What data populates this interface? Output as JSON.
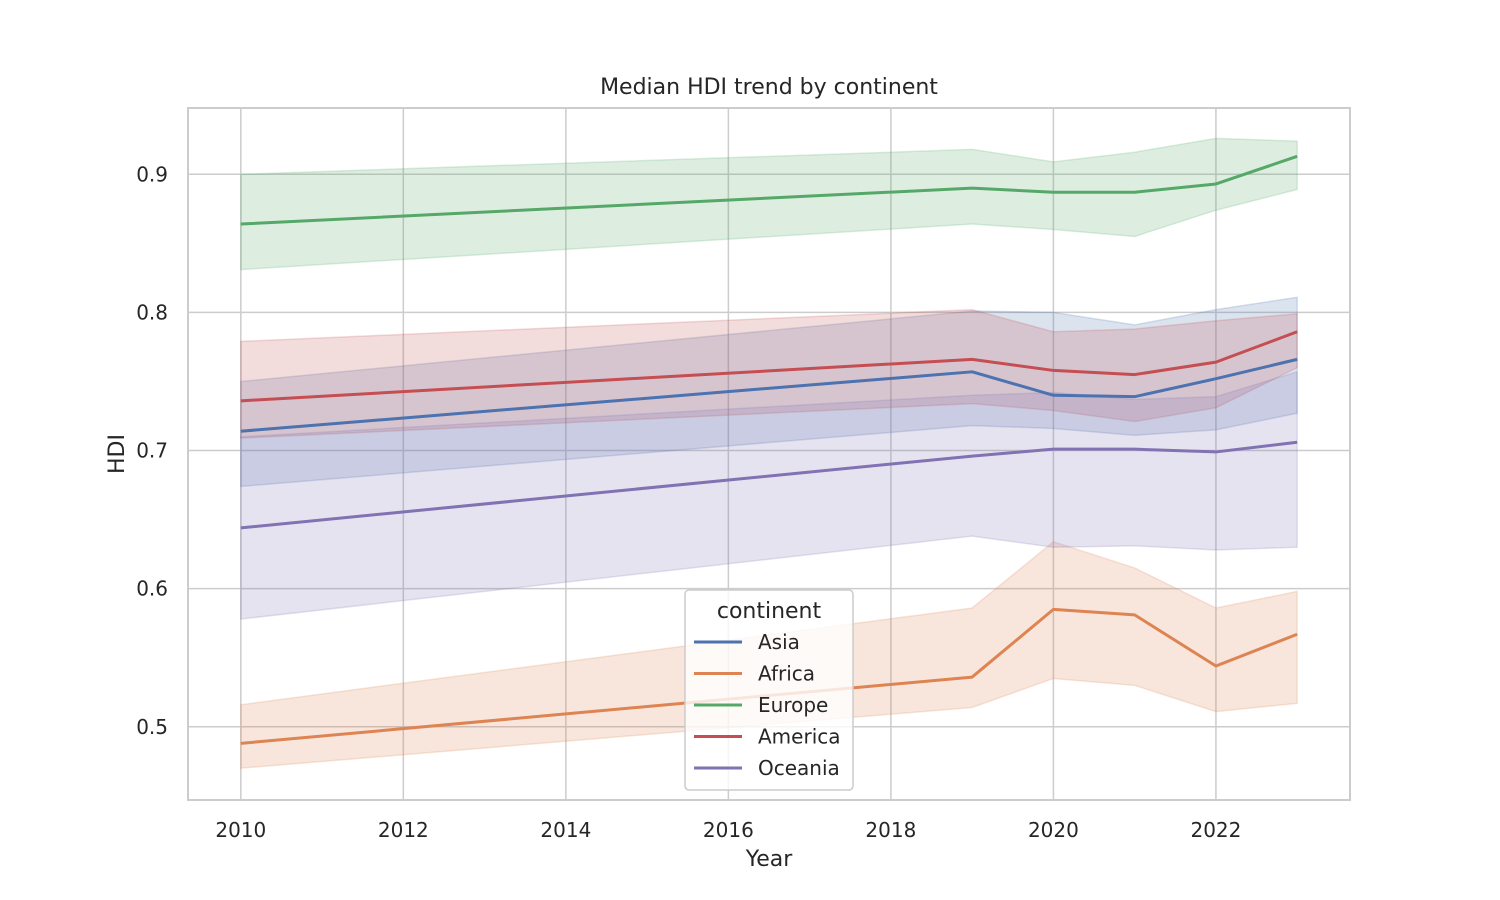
{
  "chart_data": {
    "type": "line",
    "title": "Median HDI trend by continent",
    "xlabel": "Year",
    "ylabel": "HDI",
    "xlim": [
      2009.35,
      2023.65
    ],
    "ylim": [
      0.447,
      0.948
    ],
    "xticks": [
      2010,
      2012,
      2014,
      2016,
      2018,
      2020,
      2022
    ],
    "yticks": [
      0.5,
      0.6,
      0.7,
      0.8,
      0.9
    ],
    "x": [
      2010,
      2019,
      2020,
      2021,
      2022,
      2023
    ],
    "grid": true,
    "legend": {
      "title": "continent",
      "placement": "lower center"
    },
    "series": [
      {
        "name": "Asia",
        "color": "#4c72b0",
        "values": [
          0.714,
          0.757,
          0.74,
          0.739,
          0.752,
          0.766
        ],
        "band_low": [
          0.674,
          0.718,
          0.716,
          0.711,
          0.715,
          0.727
        ],
        "band_high": [
          0.75,
          0.801,
          0.8,
          0.791,
          0.802,
          0.811
        ]
      },
      {
        "name": "Africa",
        "color": "#dd8452",
        "values": [
          0.488,
          0.536,
          0.585,
          0.581,
          0.544,
          0.567
        ],
        "band_low": [
          0.47,
          0.514,
          0.535,
          0.53,
          0.511,
          0.517
        ],
        "band_high": [
          0.516,
          0.586,
          0.634,
          0.615,
          0.586,
          0.598
        ]
      },
      {
        "name": "Europe",
        "color": "#55a868",
        "values": [
          0.864,
          0.89,
          0.887,
          0.887,
          0.893,
          0.913
        ],
        "band_low": [
          0.831,
          0.864,
          0.86,
          0.855,
          0.874,
          0.889
        ],
        "band_high": [
          0.9,
          0.918,
          0.909,
          0.916,
          0.926,
          0.924
        ]
      },
      {
        "name": "America",
        "color": "#c44e52",
        "values": [
          0.736,
          0.766,
          0.758,
          0.755,
          0.764,
          0.786
        ],
        "band_low": [
          0.709,
          0.734,
          0.729,
          0.721,
          0.731,
          0.76
        ],
        "band_high": [
          0.779,
          0.802,
          0.786,
          0.788,
          0.794,
          0.799
        ]
      },
      {
        "name": "Oceania",
        "color": "#8172b3",
        "values": [
          0.644,
          0.696,
          0.701,
          0.701,
          0.699,
          0.706
        ],
        "band_low": [
          0.578,
          0.638,
          0.63,
          0.631,
          0.628,
          0.63
        ],
        "band_high": [
          0.71,
          0.74,
          0.742,
          0.737,
          0.739,
          0.757
        ]
      }
    ]
  }
}
